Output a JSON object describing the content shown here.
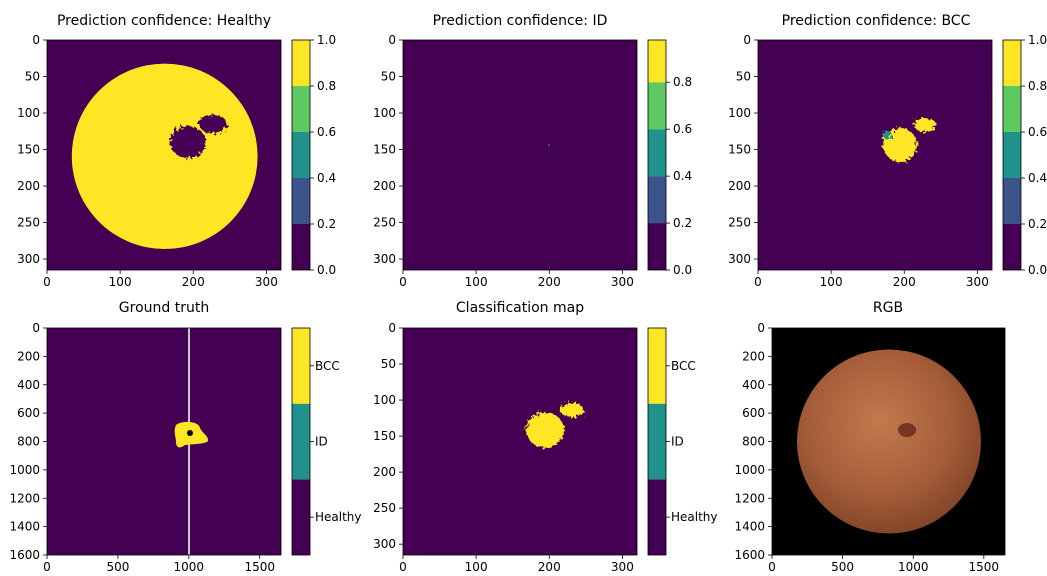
{
  "colors": {
    "viridis_purple": "#440154",
    "viridis_blue": "#3b528b",
    "viridis_teal": "#21918c",
    "viridis_green": "#5ec962",
    "viridis_yellow": "#fde725",
    "gt_line": "#c8c8c8",
    "black": "#000000"
  },
  "chart_data": [
    {
      "type": "heatmap",
      "title": "Prediction confidence: Healthy",
      "xticks": [
        "0",
        "100",
        "200",
        "300"
      ],
      "yticks": [
        "0",
        "50",
        "100",
        "150",
        "200",
        "250",
        "300"
      ],
      "xlim": [
        0,
        320
      ],
      "ylim": [
        0,
        315
      ],
      "colorbar": {
        "ticks": [
          "0.0",
          "0.2",
          "0.4",
          "0.6",
          "0.8",
          "1.0"
        ],
        "levels": [
          0,
          0.2,
          0.4,
          0.6,
          0.8,
          1.0
        ]
      },
      "regions": [
        {
          "shape": "circle",
          "cx": 161,
          "cy": 159,
          "r": 127,
          "value": 1.0
        },
        {
          "shape": "blob",
          "cx": 190,
          "cy": 140,
          "rx": 28,
          "ry": 24,
          "value": 0.0
        },
        {
          "shape": "blob",
          "cx": 228,
          "cy": 112,
          "rx": 14,
          "ry": 9,
          "value": 0.0
        }
      ]
    },
    {
      "type": "heatmap",
      "title": "Prediction confidence: ID",
      "xticks": [
        "0",
        "100",
        "200",
        "300"
      ],
      "yticks": [
        "0",
        "50",
        "100",
        "150",
        "200",
        "250",
        "300"
      ],
      "xlim": [
        0,
        320
      ],
      "ylim": [
        0,
        315
      ],
      "colorbar": {
        "ticks": [
          "0.0",
          "0.2",
          "0.4",
          "0.6",
          "0.8"
        ],
        "levels": [
          0,
          0.2,
          0.4,
          0.6,
          0.8,
          0.98
        ]
      },
      "regions": [
        {
          "shape": "dot",
          "cx": 200,
          "cy": 143,
          "value": 0.2
        }
      ]
    },
    {
      "type": "heatmap",
      "title": "Prediction confidence: BCC",
      "xticks": [
        "0",
        "100",
        "200",
        "300"
      ],
      "yticks": [
        "0",
        "50",
        "100",
        "150",
        "200",
        "250",
        "300"
      ],
      "xlim": [
        0,
        320
      ],
      "ylim": [
        0,
        315
      ],
      "colorbar": {
        "ticks": [
          "0.0",
          "0.2",
          "0.4",
          "0.6",
          "0.8",
          "1.0"
        ],
        "levels": [
          0,
          0.2,
          0.4,
          0.6,
          0.8,
          1.0
        ]
      },
      "regions": [
        {
          "shape": "blob",
          "cx": 195,
          "cy": 145,
          "rx": 22,
          "ry": 22,
          "value": 1.0
        },
        {
          "shape": "blob",
          "cx": 228,
          "cy": 116,
          "rx": 13,
          "ry": 8,
          "value": 1.0
        }
      ]
    },
    {
      "type": "heatmap",
      "title": "Ground truth",
      "xticks": [
        "0",
        "500",
        "1000",
        "1500"
      ],
      "yticks": [
        "0",
        "200",
        "400",
        "600",
        "800",
        "1000",
        "1200",
        "1400",
        "1600"
      ],
      "xlim": [
        0,
        1650
      ],
      "ylim": [
        0,
        1600
      ],
      "colorbar": {
        "ticks": [
          "Healthy",
          "ID",
          "BCC"
        ],
        "categorical": true
      },
      "regions": [
        {
          "shape": "blob",
          "cx": 1000,
          "cy": 740,
          "rx": 115,
          "ry": 95,
          "value": "BCC"
        },
        {
          "shape": "vline",
          "x": 1000
        },
        {
          "shape": "point",
          "x": 1000,
          "y": 740
        }
      ]
    },
    {
      "type": "heatmap",
      "title": "Classification map",
      "xticks": [
        "0",
        "100",
        "200",
        "300"
      ],
      "yticks": [
        "0",
        "50",
        "100",
        "150",
        "200",
        "250",
        "300"
      ],
      "xlim": [
        0,
        320
      ],
      "ylim": [
        0,
        315
      ],
      "colorbar": {
        "ticks": [
          "Healthy",
          "ID",
          "BCC"
        ],
        "categorical": true
      },
      "regions": [
        {
          "shape": "blob",
          "cx": 195,
          "cy": 140,
          "rx": 25,
          "ry": 24,
          "value": "BCC"
        },
        {
          "shape": "blob",
          "cx": 228,
          "cy": 113,
          "rx": 14,
          "ry": 9,
          "value": "BCC"
        }
      ]
    },
    {
      "type": "image",
      "title": "RGB",
      "xticks": [
        "0",
        "500",
        "1000",
        "1500"
      ],
      "yticks": [
        "0",
        "200",
        "400",
        "600",
        "800",
        "1000",
        "1200",
        "1400",
        "1600"
      ],
      "xlim": [
        0,
        1650
      ],
      "ylim": [
        0,
        1600
      ],
      "regions": [
        {
          "shape": "circle",
          "cx": 830,
          "cy": 800,
          "r": 650,
          "value": "skin"
        },
        {
          "shape": "blob",
          "cx": 960,
          "cy": 720,
          "rx": 80,
          "ry": 60,
          "value": "lesion"
        }
      ]
    }
  ]
}
